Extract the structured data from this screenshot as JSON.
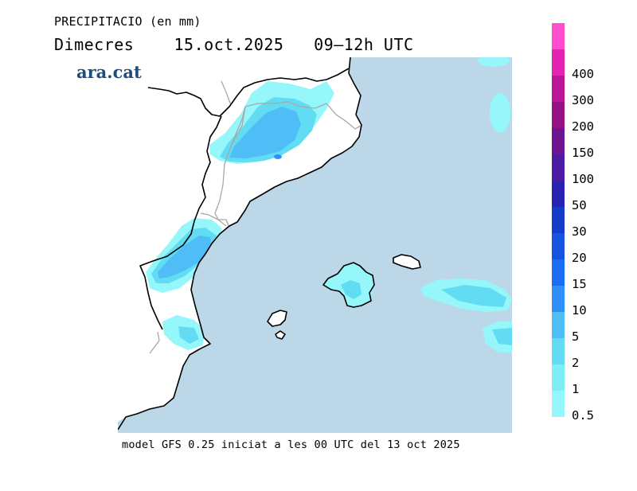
{
  "header": {
    "title": "PRECIPITACIO (en mm)",
    "day": "Dimecres",
    "date": "15.oct.2025",
    "period": "09–12h UTC"
  },
  "brand": {
    "logo_text": "ara.cat"
  },
  "footer": {
    "text": "model GFS 0.25 iniciat a les 00 UTC del 13 oct 2025"
  },
  "map": {
    "region": "Catalonia / Valencia coast and Balearic Islands",
    "colors": {
      "sea": "#bcd7e8",
      "land": "#ffffff",
      "coast": "#000000",
      "border": "#a8a8a8"
    }
  },
  "legend": {
    "classes": [
      {
        "label": "0.5",
        "color": "#96f7fb"
      },
      {
        "label": "1",
        "color": "#7eeef6"
      },
      {
        "label": "2",
        "color": "#61dcf3"
      },
      {
        "label": "5",
        "color": "#4fbdf6"
      },
      {
        "label": "10",
        "color": "#2f90f9"
      },
      {
        "label": "15",
        "color": "#1b6ef3"
      },
      {
        "label": "20",
        "color": "#1454e0"
      },
      {
        "label": "30",
        "color": "#153dc9"
      },
      {
        "label": "50",
        "color": "#2a22b3"
      },
      {
        "label": "100",
        "color": "#4c1aa3"
      },
      {
        "label": "150",
        "color": "#6d1493"
      },
      {
        "label": "200",
        "color": "#951182"
      },
      {
        "label": "300",
        "color": "#bb1697"
      },
      {
        "label": "400",
        "color": "#e424b3"
      },
      {
        "label": "",
        "color": "#ff4fcd"
      }
    ]
  }
}
